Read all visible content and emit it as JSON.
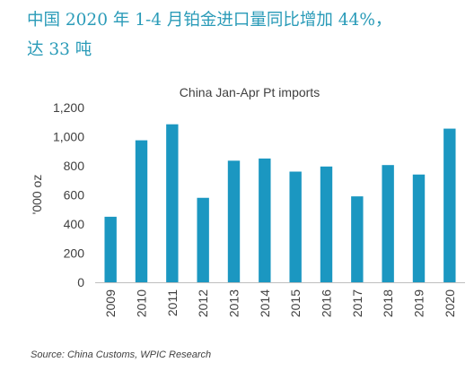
{
  "headline": {
    "line1": "中国 2020 年 1-4 月铂金进口量同比增加 44%，",
    "line2": "达 33 吨"
  },
  "chart_data": {
    "type": "bar",
    "title": "China Jan-Apr Pt imports",
    "ylabel": "'000 oz",
    "xlabel": "",
    "categories": [
      "2009",
      "2010",
      "2011",
      "2012",
      "2013",
      "2014",
      "2015",
      "2016",
      "2017",
      "2018",
      "2019",
      "2020"
    ],
    "values": [
      450,
      975,
      1085,
      580,
      835,
      850,
      760,
      795,
      590,
      805,
      740,
      1055
    ],
    "ylim": [
      0,
      1200
    ],
    "yticks": [
      "0",
      "200",
      "400",
      "600",
      "800",
      "1,000",
      "1,200"
    ],
    "bar_color": "#1b97c1",
    "grid": false
  },
  "source": "Source: China Customs, WPIC Research"
}
